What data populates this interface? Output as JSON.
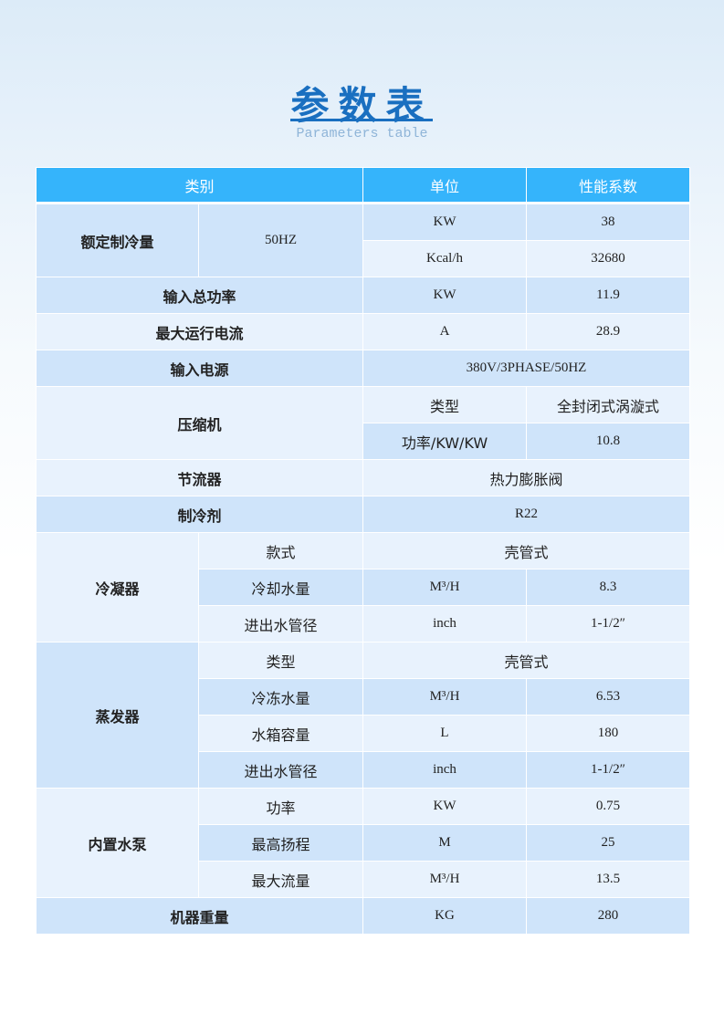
{
  "title": "参数表",
  "subtitle": "Parameters table",
  "colors": {
    "header": "#35b4fb",
    "row_dark": "#cfe4fa",
    "row_light": "#e8f2fd",
    "title": "#1a6fc0"
  },
  "table": {
    "headers": [
      {
        "text": "类别",
        "colspan": 2
      },
      {
        "text": "单位",
        "colspan": 1
      },
      {
        "text": "性能系数",
        "colspan": 1
      }
    ],
    "rows": [
      [
        {
          "text": "额定制冷量",
          "rowspan": 2,
          "bold": true,
          "tone": "d"
        },
        {
          "text": "50HZ",
          "rowspan": 2,
          "tone": "d"
        },
        {
          "text": "KW",
          "tone": "d"
        },
        {
          "text": "38",
          "tone": "d"
        }
      ],
      [
        {
          "text": "Kcal/h",
          "tone": "l"
        },
        {
          "text": "32680",
          "tone": "l"
        }
      ],
      [
        {
          "text": "输入总功率",
          "colspan": 2,
          "bold": true,
          "tone": "d"
        },
        {
          "text": "KW",
          "tone": "d"
        },
        {
          "text": "11.9",
          "tone": "d"
        }
      ],
      [
        {
          "text": "最大运行电流",
          "colspan": 2,
          "bold": true,
          "tone": "l"
        },
        {
          "text": "A",
          "tone": "l"
        },
        {
          "text": "28.9",
          "tone": "l"
        }
      ],
      [
        {
          "text": "输入电源",
          "colspan": 2,
          "bold": true,
          "tone": "d"
        },
        {
          "text": "380V/3PHASE/50HZ",
          "colspan": 2,
          "tone": "d"
        }
      ],
      [
        {
          "text": "压缩机",
          "colspan": 2,
          "rowspan": 2,
          "bold": true,
          "tone": "l"
        },
        {
          "text": "类型",
          "cn": true,
          "tone": "l"
        },
        {
          "text": "全封闭式涡漩式",
          "cn": true,
          "tone": "l"
        }
      ],
      [
        {
          "text": "功率/KW/KW",
          "cn": true,
          "tone": "d"
        },
        {
          "text": "10.8",
          "tone": "d"
        }
      ],
      [
        {
          "text": "节流器",
          "colspan": 2,
          "bold": true,
          "tone": "l"
        },
        {
          "text": "热力膨胀阀",
          "colspan": 2,
          "cn": true,
          "tone": "l"
        }
      ],
      [
        {
          "text": "制冷剂",
          "colspan": 2,
          "bold": true,
          "tone": "d"
        },
        {
          "text": "R22",
          "colspan": 2,
          "tone": "d"
        }
      ],
      [
        {
          "text": "冷凝器",
          "rowspan": 3,
          "bold": true,
          "tone": "l"
        },
        {
          "text": "款式",
          "cn": true,
          "tone": "l"
        },
        {
          "text": "壳管式",
          "colspan": 2,
          "cn": true,
          "tone": "l"
        }
      ],
      [
        {
          "text": "冷却水量",
          "cn": true,
          "tone": "d"
        },
        {
          "text": "M³/H",
          "tone": "d"
        },
        {
          "text": "8.3",
          "tone": "d"
        }
      ],
      [
        {
          "text": "进出水管径",
          "cn": true,
          "tone": "l"
        },
        {
          "text": "inch",
          "tone": "l"
        },
        {
          "text": "1-1/2″",
          "tone": "l"
        }
      ],
      [
        {
          "text": "蒸发器",
          "rowspan": 4,
          "bold": true,
          "tone": "d"
        },
        {
          "text": "类型",
          "cn": true,
          "tone": "l"
        },
        {
          "text": "壳管式",
          "colspan": 2,
          "cn": true,
          "tone": "l"
        }
      ],
      [
        {
          "text": "冷冻水量",
          "cn": true,
          "tone": "d"
        },
        {
          "text": "M³/H",
          "tone": "d"
        },
        {
          "text": "6.53",
          "tone": "d"
        }
      ],
      [
        {
          "text": "水箱容量",
          "cn": true,
          "tone": "l"
        },
        {
          "text": "L",
          "tone": "l"
        },
        {
          "text": "180",
          "tone": "l"
        }
      ],
      [
        {
          "text": "进出水管径",
          "cn": true,
          "tone": "d"
        },
        {
          "text": "inch",
          "tone": "d"
        },
        {
          "text": "1-1/2″",
          "tone": "d"
        }
      ],
      [
        {
          "text": "内置水泵",
          "rowspan": 3,
          "bold": true,
          "tone": "l"
        },
        {
          "text": "功率",
          "cn": true,
          "tone": "l"
        },
        {
          "text": "KW",
          "tone": "l"
        },
        {
          "text": "0.75",
          "tone": "l"
        }
      ],
      [
        {
          "text": "最高扬程",
          "cn": true,
          "tone": "d"
        },
        {
          "text": "M",
          "tone": "d"
        },
        {
          "text": "25",
          "tone": "d"
        }
      ],
      [
        {
          "text": "最大流量",
          "cn": true,
          "tone": "l"
        },
        {
          "text": "M³/H",
          "tone": "l"
        },
        {
          "text": "13.5",
          "tone": "l"
        }
      ],
      [
        {
          "text": "机器重量",
          "colspan": 2,
          "bold": true,
          "tone": "d"
        },
        {
          "text": "KG",
          "tone": "d"
        },
        {
          "text": "280",
          "tone": "d"
        }
      ]
    ]
  }
}
